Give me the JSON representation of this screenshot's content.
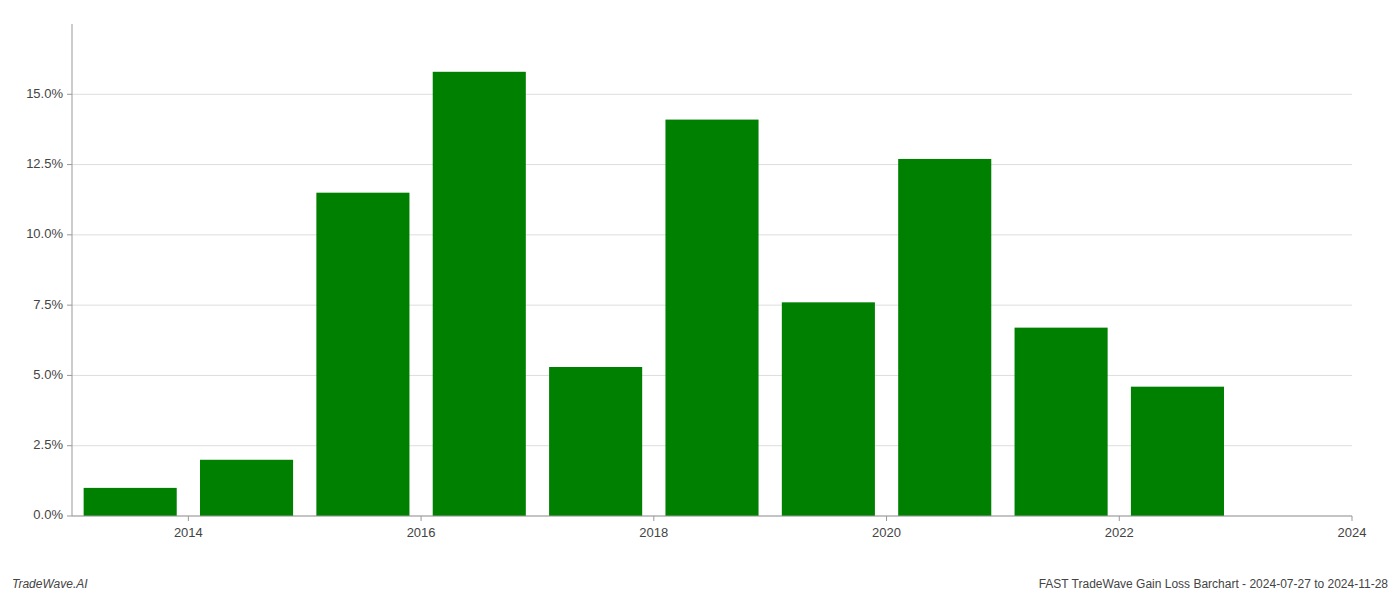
{
  "chart_data": {
    "type": "bar",
    "x": [
      2014,
      2015,
      2016,
      2017,
      2018,
      2019,
      2020,
      2021,
      2022,
      2023
    ],
    "values": [
      0.01,
      0.02,
      0.115,
      0.158,
      0.053,
      0.141,
      0.076,
      0.127,
      0.067,
      0.046
    ],
    "color": "#008000",
    "xlim": [
      2013.5,
      2024.5
    ],
    "xticks": [
      {
        "value": 2014.5,
        "label": "2014"
      },
      {
        "value": 2016.5,
        "label": "2016"
      },
      {
        "value": 2018.5,
        "label": "2018"
      },
      {
        "value": 2020.5,
        "label": "2020"
      },
      {
        "value": 2022.5,
        "label": "2022"
      },
      {
        "value": 2024.5,
        "label": "2024"
      }
    ],
    "ylim": [
      0,
      0.175
    ],
    "yticks": [
      {
        "value": 0.0,
        "label": "0.0%"
      },
      {
        "value": 0.025,
        "label": "2.5%"
      },
      {
        "value": 0.05,
        "label": "5.0%"
      },
      {
        "value": 0.075,
        "label": "7.5%"
      },
      {
        "value": 0.1,
        "label": "10.0%"
      },
      {
        "value": 0.125,
        "label": "12.5%"
      },
      {
        "value": 0.15,
        "label": "15.0%"
      }
    ],
    "grid": true,
    "annotations": [
      "TradeWave.AI",
      "FAST TradeWave Gain Loss Barchart - 2024-07-27 to 2024-11-28"
    ]
  }
}
